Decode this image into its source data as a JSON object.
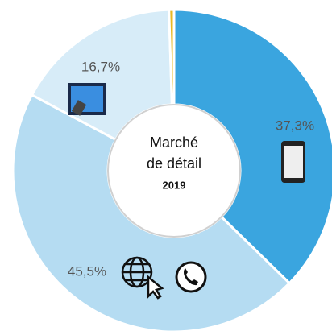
{
  "chart_data": {
    "type": "donut",
    "values": [
      37.3,
      45.5,
      16.7,
      0.5
    ],
    "value_labels": [
      "37,3%",
      "45,5%",
      "16,7%",
      null
    ],
    "colors": [
      "#3aa5df",
      "#b5dcf2",
      "#d7ecf8",
      "#e8b923"
    ],
    "center_text": [
      "Marché",
      "de détail"
    ],
    "center_subtext": "2019"
  }
}
